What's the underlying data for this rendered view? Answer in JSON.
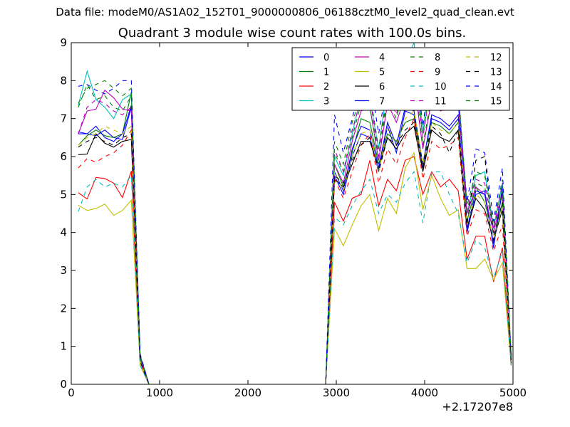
{
  "suptitle": "Data file: modeM0/AS1A02_152T01_9000000806_06188cztM0_level2_quad_clean.evt",
  "chart_data": {
    "type": "line",
    "title": "Quadrant 3 module wise count rates with 100.0s bins.",
    "xlabel": "",
    "ylabel": "",
    "x_offset_label": "+2.17207e8",
    "xlim": [
      0,
      5000
    ],
    "ylim": [
      0,
      9
    ],
    "xticks": [
      0,
      1000,
      2000,
      3000,
      4000,
      5000
    ],
    "xtick_labels": [
      "0",
      "1000",
      "2000",
      "3000",
      "4000",
      "5000"
    ],
    "yticks": [
      0,
      1,
      2,
      3,
      4,
      5,
      6,
      7,
      8,
      9
    ],
    "ytick_labels": [
      "0",
      "1",
      "2",
      "3",
      "4",
      "5",
      "6",
      "7",
      "8",
      "9"
    ],
    "legend_position": "upper right",
    "legend_columns": 4,
    "x": [
      80,
      180,
      280,
      380,
      480,
      580,
      680,
      780,
      880,
      980,
      2880,
      2980,
      3080,
      3180,
      3280,
      3380,
      3480,
      3580,
      3680,
      3780,
      3880,
      3980,
      4080,
      4180,
      4280,
      4380,
      4480,
      4580,
      4680,
      4780,
      4880,
      4980
    ],
    "series": [
      {
        "name": "0",
        "color": "#0000ff",
        "dash": false,
        "values": [
          6.65,
          6.6,
          6.55,
          6.7,
          6.5,
          6.45,
          7.3,
          0.75,
          0,
          0,
          0,
          5.5,
          5.0,
          6.0,
          6.6,
          6.5,
          5.6,
          6.8,
          6.1,
          7.2,
          7.1,
          5.7,
          7.0,
          6.9,
          6.7,
          7.0,
          4.0,
          5.0,
          5.1,
          3.6,
          5.2,
          0.6
        ]
      },
      {
        "name": "1",
        "color": "#008000",
        "dash": false,
        "values": [
          6.3,
          6.55,
          6.7,
          6.55,
          6.5,
          6.6,
          7.7,
          0.6,
          0,
          0,
          0,
          5.8,
          5.2,
          6.1,
          7.0,
          6.9,
          5.8,
          6.6,
          6.4,
          6.9,
          7.0,
          5.8,
          6.9,
          6.8,
          6.6,
          6.9,
          4.3,
          5.2,
          4.8,
          3.8,
          4.8,
          0.6
        ]
      },
      {
        "name": "2",
        "color": "#ff0000",
        "dash": false,
        "values": [
          5.05,
          4.88,
          5.45,
          5.42,
          5.3,
          4.92,
          5.62,
          0.5,
          0,
          0,
          0,
          4.8,
          4.3,
          4.9,
          5.0,
          5.9,
          4.7,
          5.4,
          5.1,
          5.9,
          6.0,
          5.0,
          5.6,
          5.2,
          5.4,
          5.1,
          3.3,
          3.9,
          3.9,
          2.7,
          3.6,
          0.5
        ]
      },
      {
        "name": "3",
        "color": "#00bfbf",
        "dash": false,
        "values": [
          7.35,
          8.25,
          7.5,
          7.3,
          7.0,
          7.5,
          7.65,
          0.7,
          0,
          0,
          0,
          6.0,
          5.5,
          6.6,
          7.6,
          7.5,
          6.2,
          7.9,
          7.3,
          8.5,
          9.0,
          6.6,
          8.5,
          8.2,
          8.0,
          7.8,
          4.5,
          5.5,
          5.6,
          4.1,
          5.3,
          0.7
        ]
      },
      {
        "name": "4",
        "color": "#bf00bf",
        "dash": false,
        "values": [
          6.6,
          7.2,
          7.25,
          7.75,
          7.55,
          7.25,
          7.2,
          0.7,
          0,
          0,
          0,
          5.8,
          5.3,
          6.4,
          7.2,
          7.3,
          5.9,
          7.4,
          6.9,
          7.6,
          8.0,
          6.2,
          7.5,
          7.2,
          7.3,
          7.4,
          4.5,
          5.2,
          5.0,
          4.0,
          5.0,
          0.6
        ]
      },
      {
        "name": "5",
        "color": "#bfbf00",
        "dash": false,
        "values": [
          4.72,
          4.58,
          4.63,
          4.75,
          4.45,
          4.58,
          4.85,
          0.5,
          0,
          0,
          0,
          4.1,
          3.65,
          4.2,
          4.7,
          5.0,
          4.05,
          4.9,
          4.5,
          5.7,
          6.1,
          4.6,
          5.5,
          4.9,
          4.45,
          4.6,
          3.05,
          3.05,
          3.3,
          2.75,
          3.2,
          0.5
        ]
      },
      {
        "name": "6",
        "color": "#000000",
        "dash": false,
        "values": [
          6.05,
          6.07,
          6.6,
          6.35,
          6.25,
          6.4,
          6.45,
          0.6,
          0,
          0,
          0,
          5.4,
          5.2,
          5.8,
          6.4,
          6.4,
          5.7,
          6.5,
          6.2,
          6.6,
          6.8,
          5.6,
          6.7,
          6.5,
          6.4,
          6.7,
          4.1,
          4.9,
          4.6,
          3.8,
          4.6,
          0.5
        ]
      },
      {
        "name": "7",
        "color": "#0000ff",
        "dash": false,
        "values": [
          6.6,
          6.6,
          6.8,
          6.5,
          6.4,
          6.6,
          7.35,
          0.75,
          0,
          0,
          0,
          5.6,
          5.1,
          6.2,
          6.8,
          6.7,
          5.7,
          6.9,
          6.3,
          7.3,
          7.2,
          5.8,
          7.1,
          7.0,
          6.8,
          7.1,
          4.1,
          5.1,
          5.0,
          3.7,
          5.1,
          0.6
        ]
      },
      {
        "name": "8",
        "color": "#008000",
        "dash": true,
        "values": [
          7.3,
          7.9,
          7.5,
          7.6,
          7.3,
          7.2,
          7.6,
          0.7,
          0,
          0,
          0,
          6.1,
          5.6,
          6.5,
          7.4,
          7.3,
          6.0,
          7.5,
          7.0,
          8.0,
          8.2,
          6.3,
          7.6,
          7.4,
          7.3,
          7.6,
          4.6,
          5.3,
          5.2,
          4.1,
          5.1,
          0.7
        ]
      },
      {
        "name": "9",
        "color": "#ff0000",
        "dash": true,
        "values": [
          5.7,
          5.95,
          5.85,
          6.0,
          6.1,
          6.3,
          6.7,
          0.6,
          0,
          0,
          0,
          5.4,
          4.9,
          5.6,
          6.3,
          6.6,
          5.3,
          6.2,
          5.8,
          6.5,
          7.0,
          5.4,
          6.4,
          6.2,
          6.3,
          6.5,
          3.9,
          4.6,
          4.5,
          3.5,
          4.2,
          0.6
        ]
      },
      {
        "name": "10",
        "color": "#00bfbf",
        "dash": true,
        "values": [
          4.55,
          5.2,
          5.4,
          5.2,
          5.3,
          5.2,
          5.5,
          0.5,
          0,
          0,
          0,
          4.4,
          4.2,
          4.7,
          5.1,
          5.4,
          4.5,
          5.0,
          4.8,
          5.3,
          5.6,
          4.25,
          5.6,
          5.6,
          5.0,
          4.5,
          3.2,
          3.8,
          3.6,
          2.8,
          3.5,
          0.5
        ]
      },
      {
        "name": "11",
        "color": "#bf00bf",
        "dash": true,
        "values": [
          6.6,
          7.3,
          7.5,
          7.4,
          7.2,
          7.1,
          7.3,
          0.7,
          0,
          0,
          0,
          6.2,
          5.6,
          6.7,
          7.5,
          7.6,
          6.0,
          7.7,
          7.1,
          8.2,
          8.5,
          6.5,
          8.0,
          7.8,
          7.6,
          7.6,
          4.6,
          5.4,
          5.3,
          4.1,
          5.3,
          0.7
        ]
      },
      {
        "name": "12",
        "color": "#bfbf00",
        "dash": true,
        "values": [
          6.3,
          6.5,
          6.6,
          6.8,
          6.7,
          6.6,
          6.8,
          0.6,
          0,
          0,
          0,
          5.6,
          5.1,
          6.0,
          6.6,
          6.7,
          5.6,
          6.8,
          6.3,
          7.0,
          7.2,
          5.8,
          6.9,
          6.7,
          6.6,
          6.9,
          4.2,
          5.0,
          4.8,
          3.8,
          4.7,
          0.6
        ]
      },
      {
        "name": "13",
        "color": "#000000",
        "dash": true,
        "values": [
          6.25,
          6.4,
          6.5,
          6.4,
          6.3,
          6.5,
          6.6,
          0.6,
          0,
          0,
          0,
          5.5,
          5.3,
          5.9,
          6.3,
          6.5,
          5.6,
          6.5,
          6.3,
          6.7,
          6.9,
          5.7,
          6.8,
          6.6,
          6.1,
          6.7,
          4.2,
          5.9,
          6.0,
          3.9,
          4.8,
          0.6
        ]
      },
      {
        "name": "14",
        "color": "#0000ff",
        "dash": true,
        "values": [
          7.85,
          7.9,
          7.75,
          7.65,
          7.8,
          8.0,
          8.0,
          0.8,
          0,
          0,
          0,
          7.1,
          6.1,
          7.0,
          7.9,
          8.1,
          6.6,
          8.0,
          7.5,
          8.4,
          8.8,
          6.8,
          8.6,
          8.2,
          7.9,
          7.5,
          4.8,
          6.2,
          6.1,
          4.3,
          5.7,
          0.7
        ]
      },
      {
        "name": "15",
        "color": "#008000",
        "dash": true,
        "values": [
          7.4,
          7.8,
          7.9,
          8.0,
          7.8,
          7.6,
          7.8,
          0.75,
          0,
          0,
          0,
          6.4,
          5.8,
          6.9,
          7.6,
          7.7,
          6.2,
          7.8,
          7.3,
          8.1,
          8.4,
          6.6,
          8.0,
          7.8,
          7.6,
          7.8,
          4.7,
          5.6,
          5.5,
          4.2,
          5.4,
          0.7
        ]
      }
    ]
  }
}
